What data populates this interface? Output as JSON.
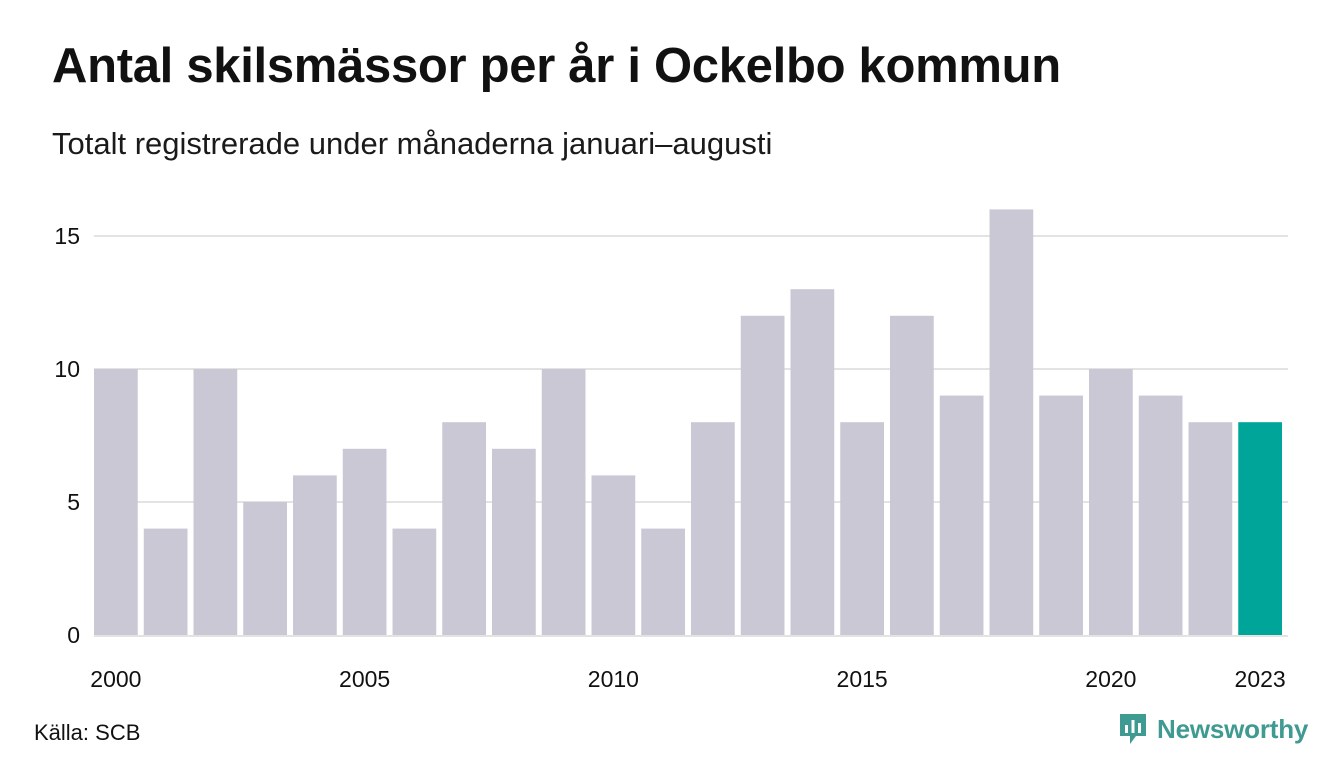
{
  "title": "Antal skilsmässor per år i Ockelbo kommun",
  "subtitle": "Totalt registrerade under månaderna januari–augusti",
  "source": "Källa: SCB",
  "brand": "Newsworthy",
  "colors": {
    "bar": "#c9c8d4",
    "highlight": "#00a59a",
    "grid": "#e3e3e3",
    "brand": "#3f9a91"
  },
  "chart_data": {
    "type": "bar",
    "title": "Antal skilsmässor per år i Ockelbo kommun",
    "subtitle": "Totalt registrerade under månaderna januari–augusti",
    "categories": [
      "2000",
      "2001",
      "2002",
      "2003",
      "2004",
      "2005",
      "2006",
      "2007",
      "2008",
      "2009",
      "2010",
      "2011",
      "2012",
      "2013",
      "2014",
      "2015",
      "2016",
      "2017",
      "2018",
      "2019",
      "2020",
      "2021",
      "2022",
      "2023"
    ],
    "values": [
      10,
      4,
      10,
      5,
      6,
      7,
      4,
      8,
      7,
      10,
      6,
      4,
      8,
      12,
      13,
      8,
      12,
      9,
      16,
      9,
      10,
      9,
      8,
      8
    ],
    "highlight": "2023",
    "xticks": [
      "2000",
      "2005",
      "2010",
      "2015",
      "2020",
      "2023"
    ],
    "yticks": [
      0,
      5,
      10,
      15
    ],
    "ylim": [
      0,
      16
    ],
    "xlabel": "",
    "ylabel": "",
    "grid": "horizontal",
    "legend": "none"
  }
}
